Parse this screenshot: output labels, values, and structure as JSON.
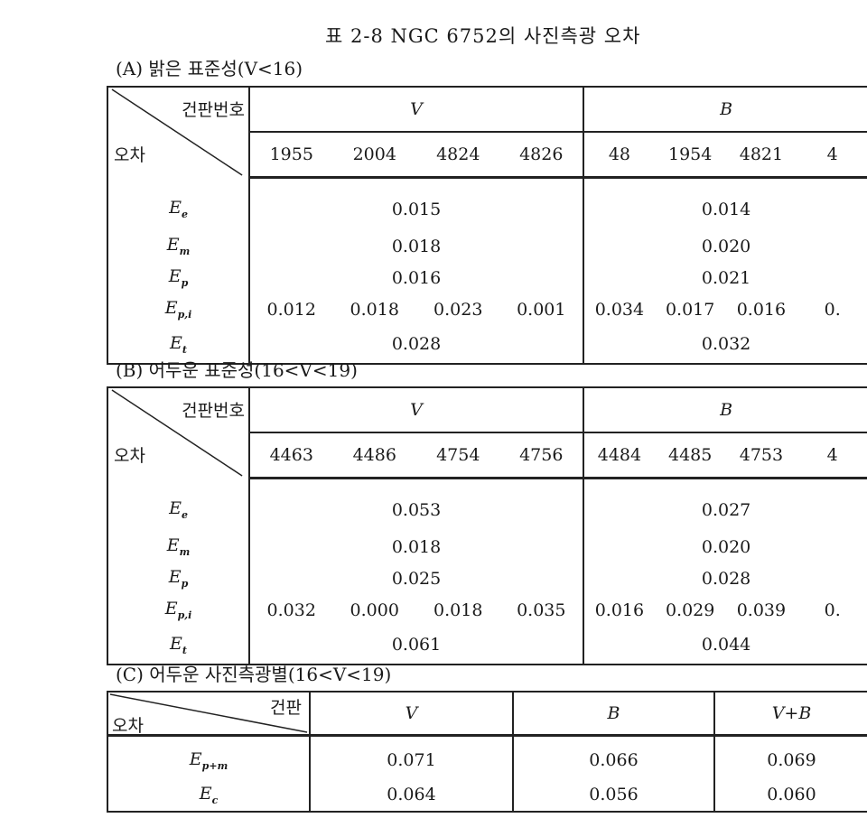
{
  "title": "표 2-8  NGC 6752의 사진측광 오차",
  "corner": {
    "plate_no": "건판번호",
    "error": "오차",
    "plate": "건판"
  },
  "section_a": {
    "label": "(A) 밝은 표준성(V<16)",
    "groups": [
      "V",
      "B"
    ],
    "v_plates": [
      "1955",
      "2004",
      "4824",
      "4826"
    ],
    "b_plates": [
      "48",
      "1954",
      "4821",
      "4"
    ],
    "rows": [
      {
        "sym": "E",
        "sub": "e",
        "v": "0.015",
        "b": "0.014"
      },
      {
        "sym": "E",
        "sub": "m",
        "v": "0.018",
        "b": "0.020"
      },
      {
        "sym": "E",
        "sub": "p",
        "v": "0.016",
        "b": "0.021"
      },
      {
        "sym": "E",
        "sub": "p,i",
        "v_each": [
          "0.012",
          "0.018",
          "0.023",
          "0.001"
        ],
        "b_each": [
          "0.034",
          "0.017",
          "0.016",
          "0."
        ]
      },
      {
        "sym": "E",
        "sub": "t",
        "v": "0.028",
        "b": "0.032"
      }
    ]
  },
  "section_b": {
    "label": "(B) 어두운 표준성(16<V<19)",
    "groups": [
      "V",
      "B"
    ],
    "v_plates": [
      "4463",
      "4486",
      "4754",
      "4756"
    ],
    "b_plates": [
      "4484",
      "4485",
      "4753",
      "4"
    ],
    "rows": [
      {
        "sym": "E",
        "sub": "e",
        "v": "0.053",
        "b": "0.027"
      },
      {
        "sym": "E",
        "sub": "m",
        "v": "0.018",
        "b": "0.020"
      },
      {
        "sym": "E",
        "sub": "p",
        "v": "0.025",
        "b": "0.028"
      },
      {
        "sym": "E",
        "sub": "p,i",
        "v_each": [
          "0.032",
          "0.000",
          "0.018",
          "0.035"
        ],
        "b_each": [
          "0.016",
          "0.029",
          "0.039",
          "0."
        ]
      },
      {
        "sym": "E",
        "sub": "t",
        "v": "0.061",
        "b": "0.044"
      }
    ]
  },
  "section_c": {
    "label": "(C) 어두운 사진측광별(16<V<19)",
    "cols": [
      "V",
      "B",
      "V+B"
    ],
    "rows": [
      {
        "sym": "E",
        "sub": "p+m",
        "vals": [
          "0.071",
          "0.066",
          "0.069"
        ]
      },
      {
        "sym": "E",
        "sub": "c",
        "vals": [
          "0.064",
          "0.056",
          "0.060"
        ]
      }
    ]
  }
}
